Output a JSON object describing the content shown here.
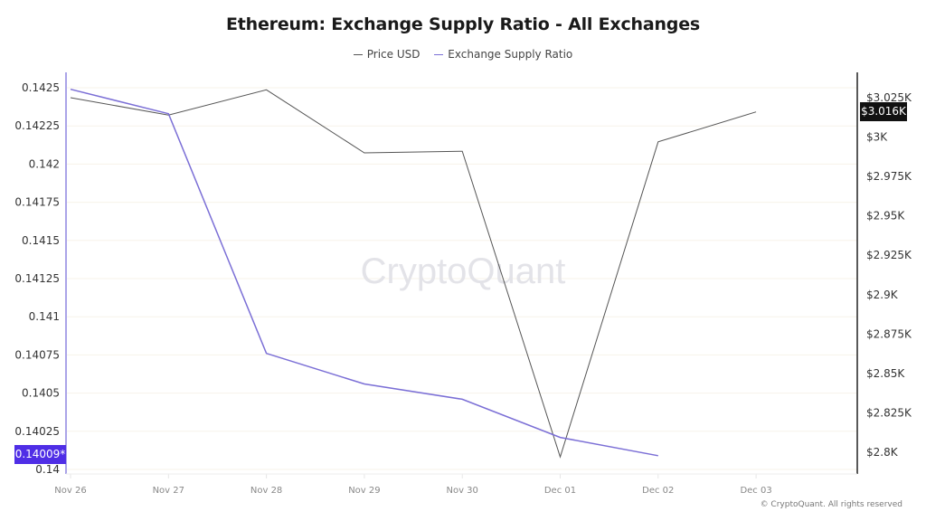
{
  "header": {
    "title": "Ethereum: Exchange Supply Ratio - All Exchanges"
  },
  "legend": [
    {
      "label": "Price USD",
      "color": "#555555"
    },
    {
      "label": "Exchange Supply Ratio",
      "color": "#7b6fd6"
    }
  ],
  "watermark": "CryptoQuant",
  "copyright": "© CryptoQuant. All rights reserved",
  "badges": {
    "left_current": "0.14009*",
    "right_current": "$3.016K"
  },
  "axes": {
    "left_ticks": [
      "0.1425",
      "0.14225",
      "0.142",
      "0.14175",
      "0.1415",
      "0.14125",
      "0.141",
      "0.14075",
      "0.1405",
      "0.14025",
      "0.14"
    ],
    "right_ticks": [
      "$3.025K",
      "$3K",
      "$2.975K",
      "$2.95K",
      "$2.925K",
      "$2.9K",
      "$2.875K",
      "$2.85K",
      "$2.825K",
      "$2.8K"
    ],
    "x_ticks": [
      "Nov 26",
      "Nov 27",
      "Nov 28",
      "Nov 29",
      "Nov 30",
      "Dec 01",
      "Dec 02",
      "Dec 03"
    ]
  },
  "chart_data": {
    "type": "line",
    "title": "Ethereum: Exchange Supply Ratio - All Exchanges",
    "categories": [
      "Nov 26",
      "Nov 27",
      "Nov 28",
      "Nov 29",
      "Nov 30",
      "Dec 01",
      "Dec 02",
      "Dec 03"
    ],
    "series": [
      {
        "name": "Price USD",
        "axis": "right",
        "color": "#555555",
        "values": [
          3025,
          3014,
          3030,
          2990,
          2991,
          2797,
          2997,
          3016
        ]
      },
      {
        "name": "Exchange Supply Ratio",
        "axis": "left",
        "color": "#7b6fd6",
        "values": [
          0.14249,
          0.14233,
          0.14076,
          0.14056,
          0.14046,
          0.14021,
          0.14009,
          null
        ]
      }
    ],
    "xlabel": "",
    "ylabel_left": "Exchange Supply Ratio",
    "ylabel_right": "Price USD",
    "ylim_left": [
      0.14,
      0.1425
    ],
    "ylim_right": [
      2800,
      3025
    ],
    "grid": true,
    "legend_position": "top"
  }
}
